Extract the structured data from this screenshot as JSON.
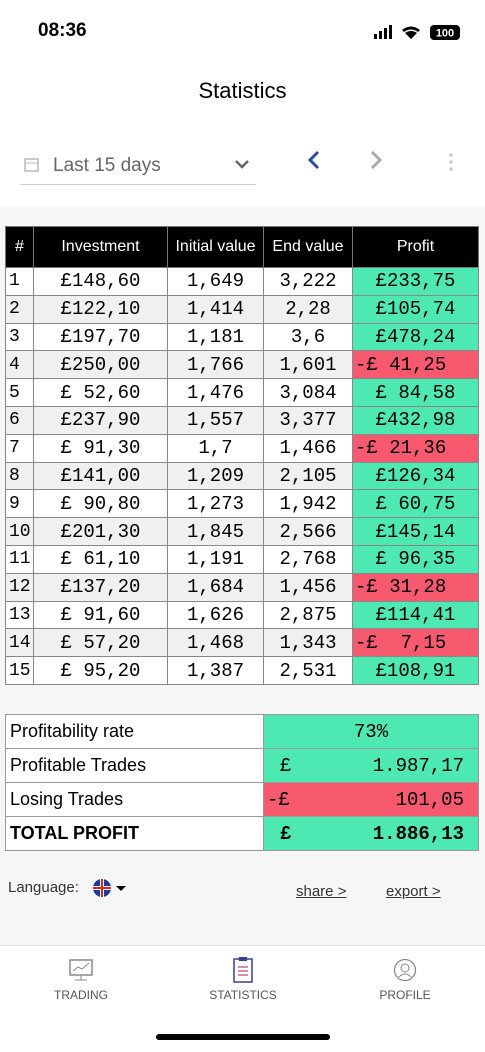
{
  "status_bar": {
    "time": "08:36",
    "battery": "100"
  },
  "header": {
    "title": "Statistics"
  },
  "filter": {
    "period": "Last 15 days"
  },
  "table": {
    "columns": [
      "#",
      "Investment",
      "Initial value",
      "End value",
      "Profit"
    ],
    "rows": [
      [
        "1",
        "£148,60",
        "1,649",
        "3,222",
        "£233,75"
      ],
      [
        "2",
        "£122,10",
        "1,414",
        "2,28",
        "£105,74"
      ],
      [
        "3",
        "£197,70",
        "1,181",
        "3,6",
        "£478,24"
      ],
      [
        "4",
        "£250,00",
        "1,766",
        "1,601",
        "-£ 41,25"
      ],
      [
        "5",
        "£ 52,60",
        "1,476",
        "3,084",
        "£ 84,58"
      ],
      [
        "6",
        "£237,90",
        "1,557",
        "3,377",
        "£432,98"
      ],
      [
        "7",
        "£ 91,30",
        "1,7",
        "1,466",
        "-£ 21,36"
      ],
      [
        "8",
        "£141,00",
        "1,209",
        "2,105",
        "£126,34"
      ],
      [
        "9",
        "£ 90,80",
        "1,273",
        "1,942",
        "£ 60,75"
      ],
      [
        "10",
        "£201,30",
        "1,845",
        "2,566",
        "£145,14"
      ],
      [
        "11",
        "£ 61,10",
        "1,191",
        "2,768",
        "£ 96,35"
      ],
      [
        "12",
        "£137,20",
        "1,684",
        "1,456",
        "-£ 31,28"
      ],
      [
        "13",
        "£ 91,60",
        "1,626",
        "2,875",
        "£114,41"
      ],
      [
        "14",
        "£ 57,20",
        "1,468",
        "1,343",
        "-£  7,15"
      ],
      [
        "15",
        "£ 95,20",
        "1,387",
        "2,531",
        "£108,91"
      ]
    ]
  },
  "summary": {
    "rows": [
      {
        "label": "Profitability rate",
        "value": "73%"
      },
      {
        "label": "Profitable Trades",
        "currency": "£",
        "value": "1.987,17"
      },
      {
        "label": "Losing Trades",
        "currency": "-£",
        "value": "101,05"
      },
      {
        "label": "TOTAL PROFIT",
        "currency": "£",
        "value": "1.886,13"
      }
    ]
  },
  "footer": {
    "language_label": "Language:",
    "share": "share >",
    "export": "export >"
  },
  "tabs": [
    "TRADING",
    "STATISTICS",
    "PROFILE"
  ]
}
